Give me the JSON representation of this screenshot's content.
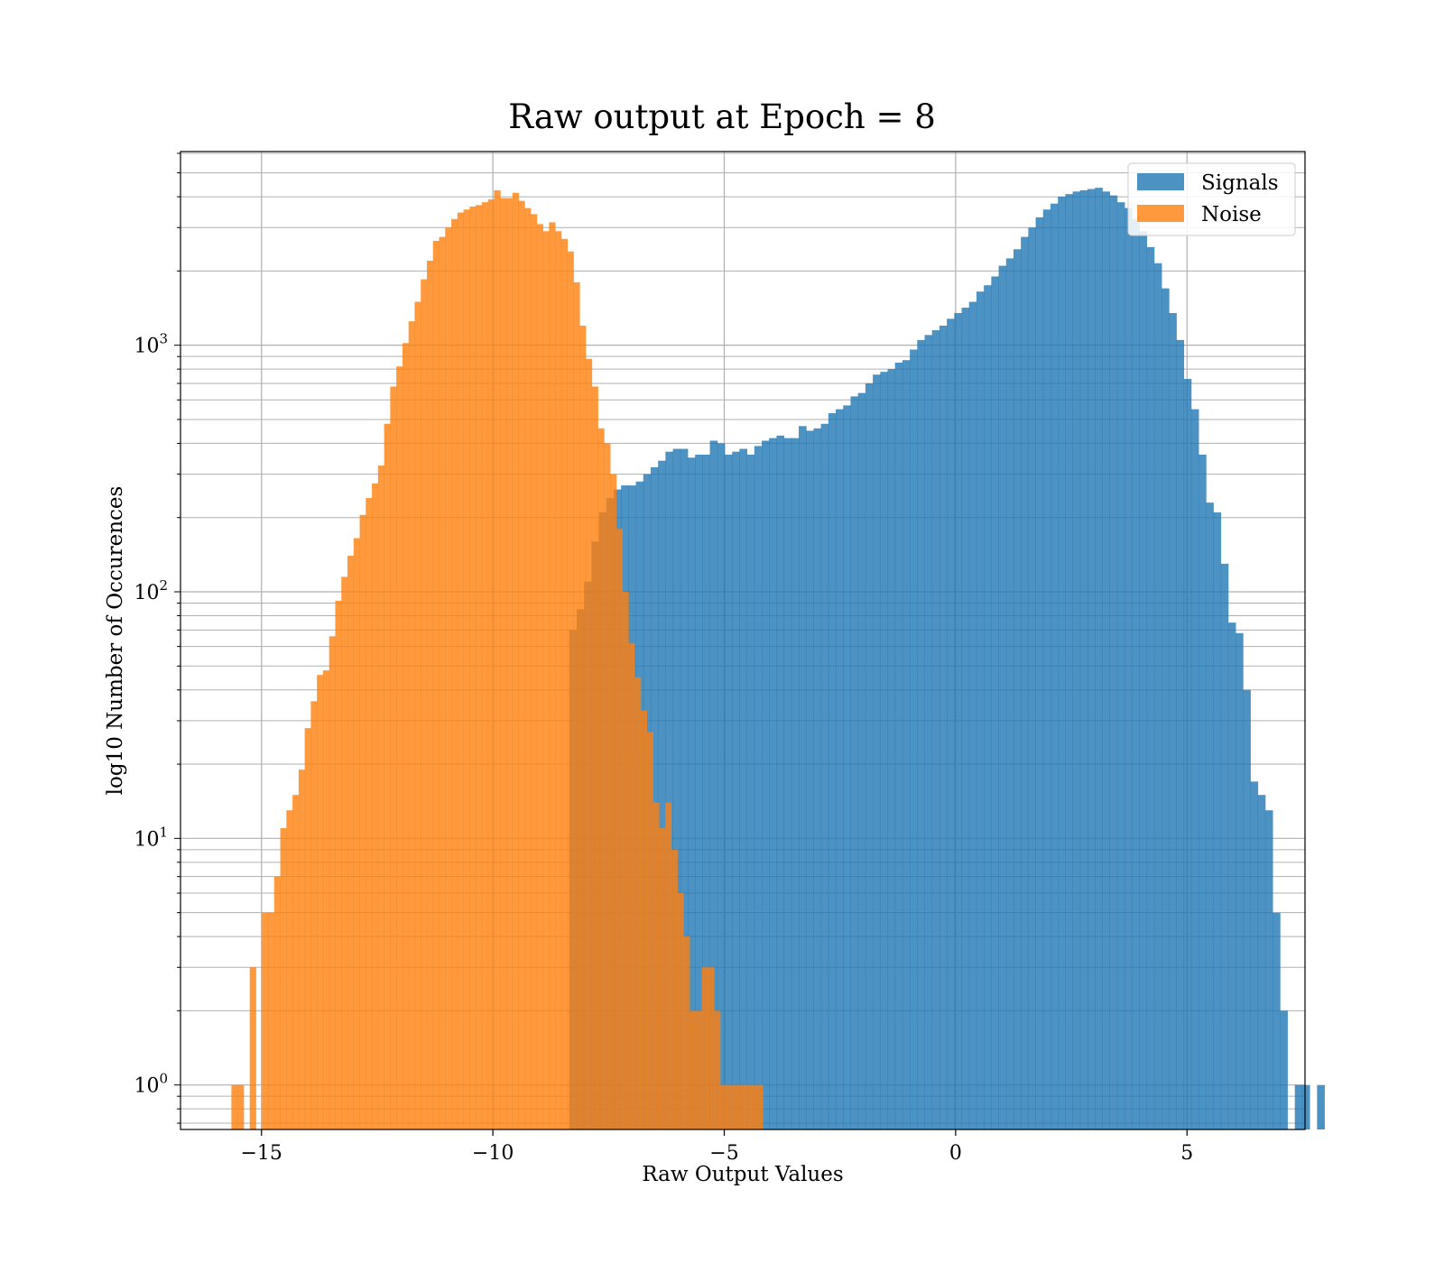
{
  "chart_data": {
    "type": "bar",
    "title": "Raw output at Epoch = 8",
    "xlabel": "Raw Output Values",
    "ylabel": "log10 Number of Occurences",
    "xlim": [
      -16.75,
      7.55
    ],
    "ylim": [
      0.66,
      6100
    ],
    "yscale": "log",
    "x_ticks": [
      -15,
      -10,
      -5,
      0,
      5
    ],
    "x_tick_labels": [
      "−15",
      "−10",
      "−5",
      "0",
      "5"
    ],
    "y_ticks": [
      1,
      10,
      100,
      1000
    ],
    "y_tick_base": "10",
    "y_tick_exponents": [
      "0",
      "1",
      "2",
      "3"
    ],
    "grid": true,
    "legend_position": "top-right",
    "series": [
      {
        "name": "Signals",
        "color": "#1f77b4",
        "opacity": 0.8,
        "bin_start": -8.35,
        "bin_width": 0.16,
        "values": [
          70,
          85,
          110,
          160,
          210,
          240,
          260,
          270,
          270,
          280,
          300,
          320,
          340,
          370,
          380,
          380,
          350,
          360,
          360,
          410,
          400,
          360,
          370,
          380,
          360,
          390,
          410,
          420,
          430,
          420,
          420,
          470,
          450,
          460,
          480,
          530,
          550,
          570,
          620,
          640,
          700,
          760,
          780,
          800,
          850,
          870,
          960,
          1050,
          1100,
          1150,
          1200,
          1280,
          1350,
          1420,
          1500,
          1650,
          1750,
          1900,
          2100,
          2250,
          2450,
          2750,
          3000,
          3300,
          3550,
          3750,
          4000,
          4100,
          4200,
          4250,
          4300,
          4350,
          4200,
          4050,
          3800,
          3600,
          3250,
          2900,
          2500,
          2150,
          1700,
          1350,
          1050,
          730,
          550,
          360,
          230,
          210,
          130,
          75,
          68,
          40,
          17,
          15,
          13,
          5,
          2,
          0,
          1,
          1,
          0,
          1
        ]
      },
      {
        "name": "Noise",
        "color": "#ff7f0e",
        "opacity": 0.8,
        "bin_start": -15.65,
        "bin_width": 0.132,
        "values": [
          1,
          1,
          0,
          3,
          0,
          5,
          5,
          7,
          11,
          13,
          15,
          19,
          28,
          36,
          46,
          48,
          66,
          92,
          115,
          140,
          165,
          205,
          240,
          275,
          325,
          480,
          680,
          820,
          1020,
          1250,
          1500,
          1850,
          2200,
          2650,
          2750,
          3000,
          3250,
          3450,
          3550,
          3650,
          3700,
          3800,
          3900,
          4250,
          3950,
          3950,
          4150,
          3850,
          3600,
          3400,
          3100,
          2900,
          3150,
          2900,
          2700,
          2400,
          1800,
          1200,
          880,
          680,
          460,
          400,
          300,
          180,
          100,
          62,
          45,
          33,
          27,
          14,
          11,
          14,
          9,
          6,
          4,
          2,
          2,
          3,
          3,
          2,
          1,
          1,
          1,
          1,
          1,
          1,
          1,
          0,
          0,
          0
        ]
      }
    ]
  }
}
